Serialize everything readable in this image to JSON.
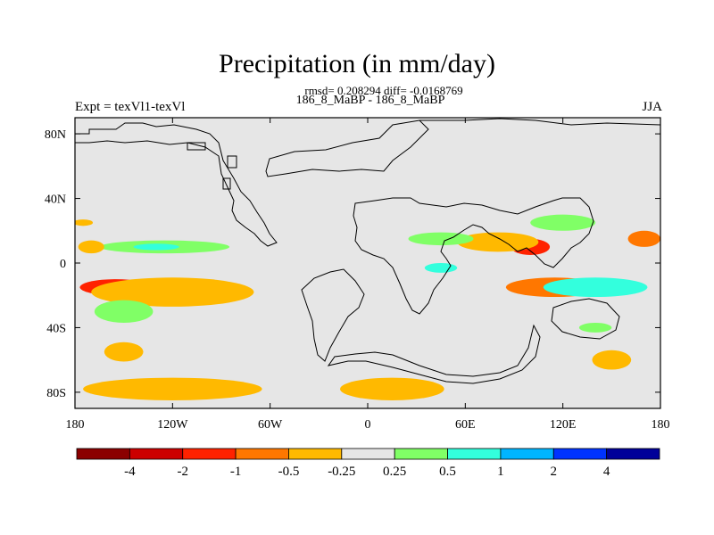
{
  "chart_data": {
    "type": "heatmap",
    "title": "Precipitation (in mm/day)",
    "subtitle_line1": "rmsd= 0.208294 diff= -0.0168769",
    "subtitle_line2": "186_8_MaBP - 186_8_MaBP",
    "left_label": "Expt = texVl1-texVl",
    "right_label": "JJA",
    "x_ticks": [
      "180",
      "120W",
      "60W",
      "0",
      "60E",
      "120E",
      "180"
    ],
    "x_tick_values": [
      -180,
      -120,
      -60,
      0,
      60,
      120,
      180
    ],
    "y_ticks": [
      "80N",
      "40N",
      "0",
      "40S",
      "80S"
    ],
    "y_tick_values": [
      80,
      40,
      0,
      -40,
      -80
    ],
    "xlim": [
      -180,
      180
    ],
    "ylim": [
      -90,
      90
    ],
    "colorbar": {
      "colors": [
        "#8b0000",
        "#cc0000",
        "#ff2200",
        "#ff7700",
        "#ffb900",
        "#e6e6e6",
        "#80ff66",
        "#33ffdd",
        "#00b5ff",
        "#0033ff",
        "#000099"
      ],
      "labels": [
        "-4",
        "-2",
        "-1",
        "-0.5",
        "-0.25",
        "0.25",
        "0.5",
        "1",
        "2",
        "4"
      ]
    },
    "anomaly_regions": [
      {
        "lon": -155,
        "lat": -15,
        "rlon": 22,
        "rlat": 5,
        "value": -1.2
      },
      {
        "lon": -120,
        "lat": -18,
        "rlon": 50,
        "rlat": 9,
        "value": -0.35
      },
      {
        "lon": -150,
        "lat": -30,
        "rlon": 18,
        "rlat": 7,
        "value": 0.3
      },
      {
        "lon": -150,
        "lat": -55,
        "rlon": 12,
        "rlat": 6,
        "value": -0.3
      },
      {
        "lon": -120,
        "lat": -78,
        "rlon": 55,
        "rlat": 7,
        "value": -0.3
      },
      {
        "lon": -125,
        "lat": 10,
        "rlon": 40,
        "rlat": 4,
        "value": 0.3
      },
      {
        "lon": -130,
        "lat": 10,
        "rlon": 14,
        "rlat": 2,
        "value": 0.6
      },
      {
        "lon": -170,
        "lat": 10,
        "rlon": 8,
        "rlat": 4,
        "value": -0.3
      },
      {
        "lon": -175,
        "lat": 25,
        "rlon": 6,
        "rlat": 2,
        "value": -0.3
      },
      {
        "lon": 15,
        "lat": -78,
        "rlon": 32,
        "rlat": 7,
        "value": -0.3
      },
      {
        "lon": 115,
        "lat": -15,
        "rlon": 30,
        "rlat": 6,
        "value": -0.6
      },
      {
        "lon": 140,
        "lat": -15,
        "rlon": 32,
        "rlat": 6,
        "value": 0.6
      },
      {
        "lon": 100,
        "lat": 10,
        "rlon": 12,
        "rlat": 5,
        "value": -1.2
      },
      {
        "lon": 80,
        "lat": 13,
        "rlon": 25,
        "rlat": 6,
        "value": -0.35
      },
      {
        "lon": 120,
        "lat": 25,
        "rlon": 20,
        "rlat": 5,
        "value": 0.3
      },
      {
        "lon": 45,
        "lat": 15,
        "rlon": 20,
        "rlat": 4,
        "value": 0.3
      },
      {
        "lon": 45,
        "lat": -3,
        "rlon": 10,
        "rlat": 3,
        "value": 0.6
      },
      {
        "lon": 170,
        "lat": 15,
        "rlon": 10,
        "rlat": 5,
        "value": -0.6
      },
      {
        "lon": 150,
        "lat": -60,
        "rlon": 12,
        "rlat": 6,
        "value": -0.3
      },
      {
        "lon": 140,
        "lat": -40,
        "rlon": 10,
        "rlat": 3,
        "value": 0.3
      }
    ]
  }
}
